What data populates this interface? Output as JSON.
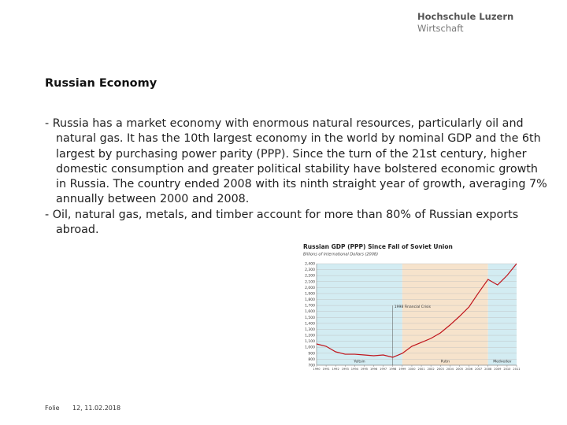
{
  "header": {
    "logo_line1": "Hochschule Luzern",
    "logo_line2": "Wirtschaft"
  },
  "title": "Russian Economy",
  "bullets": [
    "Russia has a market economy with enormous natural resources, particularly oil and natural gas. It has the 10th largest economy in the world by nominal GDP and the 6th largest by purchasing power parity (PPP). Since the turn of the 21st century, higher domestic consumption and greater political stability have bolstered economic growth in Russia. The country ended 2008 with its ninth straight year of growth, averaging 7% annually between 2000 and 2008.",
    "Oil, natural gas, metals, and timber account for more than 80% of Russian exports abroad."
  ],
  "footer": {
    "label": "Folie",
    "page_date": "12, 11.02.2018"
  },
  "chart_data": {
    "type": "line",
    "title": "Russian GDP (PPP) Since Fall of Soviet Union",
    "subtitle": "Billions of International Dollars (2008)",
    "x": [
      1990,
      1991,
      1992,
      1993,
      1994,
      1995,
      1996,
      1997,
      1998,
      1999,
      2000,
      2001,
      2002,
      2003,
      2004,
      2005,
      2006,
      2007,
      2008,
      2009,
      2010,
      2011
    ],
    "xlim": [
      1990,
      2011
    ],
    "xticks": [
      1990,
      1991,
      1992,
      1993,
      1994,
      1995,
      1996,
      1997,
      1998,
      1999,
      2000,
      2001,
      2002,
      2003,
      2004,
      2005,
      2006,
      2007,
      2008,
      2009,
      2010,
      2011
    ],
    "series": [
      {
        "name": "Russian GDP (PPP)",
        "color": "#c0141b",
        "values": [
          1056,
          1016,
          924,
          884,
          884,
          871,
          858,
          871,
          832,
          898,
          1016,
          1082,
          1148,
          1240,
          1372,
          1517,
          1675,
          1912,
          2136,
          2044,
          2202,
          2400
        ]
      }
    ],
    "ylim": [
      700,
      2400
    ],
    "yticks": [
      700,
      800,
      900,
      {
        "value": 1000,
        "label": "1,000"
      },
      {
        "value": 1100,
        "label": "1,100"
      },
      {
        "value": 1200,
        "label": "1,200"
      },
      {
        "value": 1300,
        "label": "1,300"
      },
      {
        "value": 1400,
        "label": "1,400"
      },
      {
        "value": 1500,
        "label": "1,500"
      },
      {
        "value": 1600,
        "label": "1,600"
      },
      {
        "value": 1700,
        "label": "1,700"
      },
      {
        "value": 1800,
        "label": "1,800"
      },
      {
        "value": 1900,
        "label": "1,900"
      },
      {
        "value": 2000,
        "label": "2,000"
      },
      {
        "value": 2100,
        "label": "2,100"
      },
      {
        "value": 2200,
        "label": "2,200"
      },
      {
        "value": 2300,
        "label": "2,300"
      },
      {
        "value": 2400,
        "label": "2,400"
      }
    ],
    "grid": true,
    "periods": [
      {
        "label": "Yeltsin",
        "start": 1990,
        "end": 1999,
        "color": "#d3ecf2"
      },
      {
        "label": "Putin",
        "start": 1999,
        "end": 2008,
        "color": "#f6e3cc"
      },
      {
        "label": "Medvedev",
        "start": 2008,
        "end": 2011,
        "color": "#d3ecf2"
      }
    ],
    "annotation": {
      "text": "1998 Financial Crisis",
      "x": 1998
    }
  }
}
